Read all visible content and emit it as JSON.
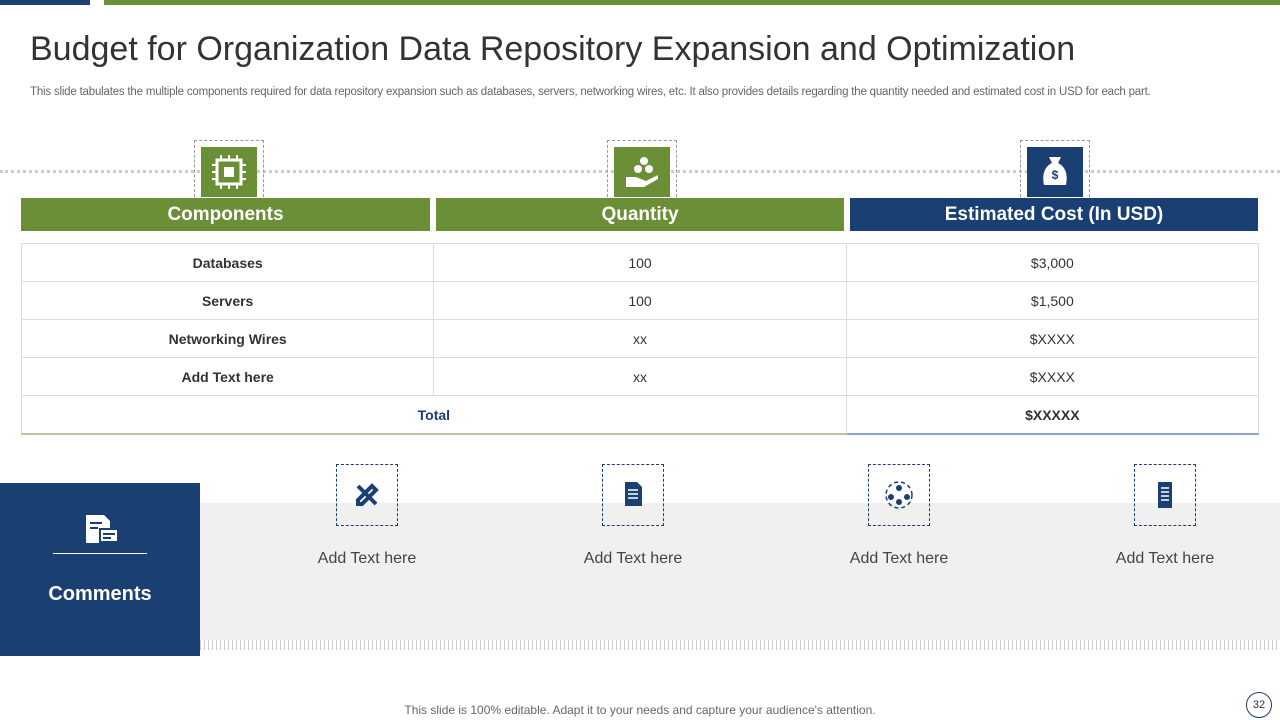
{
  "title": "Budget for Organization Data Repository Expansion and Optimization",
  "subtitle": "This slide tabulates the multiple components required for data repository expansion such as databases, servers, networking wires, etc. It also provides details regarding the quantity needed and estimated cost in USD for each part.",
  "table": {
    "headers": [
      "Components",
      "Quantity",
      "Estimated Cost (In USD)"
    ],
    "rows": [
      [
        "Databases",
        "100",
        "$3,000"
      ],
      [
        "Servers",
        "100",
        "$1,500"
      ],
      [
        "Networking Wires",
        "xx",
        "$XXXX"
      ],
      [
        "Add  Text here",
        "xx",
        "$XXXX"
      ]
    ],
    "total": {
      "label": "Total",
      "value": "$XXXXX"
    }
  },
  "comments": {
    "title": "Comments",
    "items": [
      "Add Text here",
      "Add Text here",
      "Add Text here",
      "Add Text here"
    ]
  },
  "footer": {
    "note": "This slide is 100% editable. Adapt it to your needs and capture your audience's attention.",
    "page": "32"
  }
}
